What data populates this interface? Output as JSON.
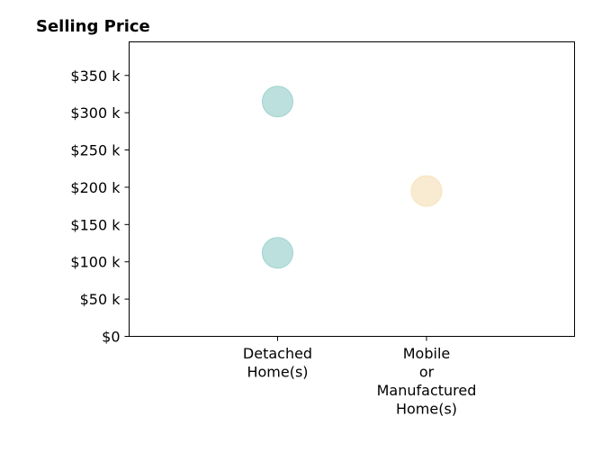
{
  "chart_data": {
    "type": "scatter",
    "title": "Selling Price",
    "xlabel": "",
    "ylabel": "",
    "categories": [
      [
        "Detached",
        "Home(s)"
      ],
      [
        "Mobile",
        "or",
        "Manufactured",
        "Home(s)"
      ]
    ],
    "ylim": [
      0,
      395000
    ],
    "yticks": [
      0,
      50000,
      100000,
      150000,
      200000,
      250000,
      300000,
      350000
    ],
    "ytick_labels": [
      "$0",
      "$50 k",
      "$100 k",
      "$150 k",
      "$200 k",
      "$250 k",
      "$300 k",
      "$350 k"
    ],
    "grid": false,
    "points": [
      {
        "category_index": 0,
        "y": 315000,
        "color": "#9fd3cf"
      },
      {
        "category_index": 0,
        "y": 112000,
        "color": "#9fd3cf"
      },
      {
        "category_index": 1,
        "y": 195000,
        "color": "#f6e3bd"
      }
    ],
    "colors": {
      "detached": "#9fd3cf",
      "mobile": "#f6e3bd"
    }
  }
}
